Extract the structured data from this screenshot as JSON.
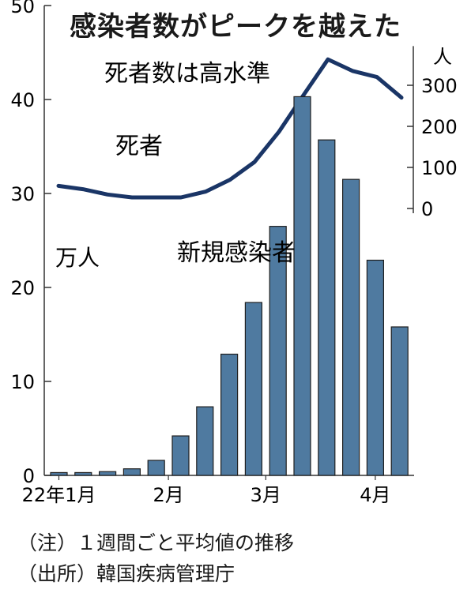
{
  "title": "感染者数がピークを越えた",
  "chart_data": [
    {
      "type": "line",
      "series_label": "死者",
      "annotation": "死者数は高水準",
      "y_unit": "人",
      "yticks": [
        0,
        100,
        200,
        300
      ],
      "ylim": [
        0,
        380
      ],
      "x_index": [
        0,
        1,
        2,
        3,
        4,
        5,
        6,
        7,
        8,
        9,
        10,
        11,
        12,
        13,
        14
      ],
      "values": [
        55,
        47,
        34,
        27,
        27,
        27,
        41,
        70,
        113,
        187,
        276,
        363,
        335,
        320,
        270
      ],
      "color": "#1a3566"
    },
    {
      "type": "bar",
      "series_label": "新規感染者",
      "y_unit": "万人",
      "yticks": [
        0,
        10,
        20,
        30,
        40,
        50
      ],
      "ylim": [
        0,
        50
      ],
      "x_tick_labels": [
        {
          "label": "22年1月",
          "index": 0
        },
        {
          "label": "2月",
          "index": 4.5
        },
        {
          "label": "3月",
          "index": 8.5
        },
        {
          "label": "4月",
          "index": 13
        }
      ],
      "values": [
        0.3,
        0.3,
        0.4,
        0.7,
        1.6,
        4.2,
        7.3,
        12.9,
        18.4,
        26.5,
        40.3,
        35.7,
        31.5,
        22.9,
        15.8
      ],
      "color": "#4f7aa0"
    }
  ],
  "notes": {
    "note": "（注）１週間ごと平均値の推移",
    "source": "（出所）韓国疾病管理庁"
  }
}
